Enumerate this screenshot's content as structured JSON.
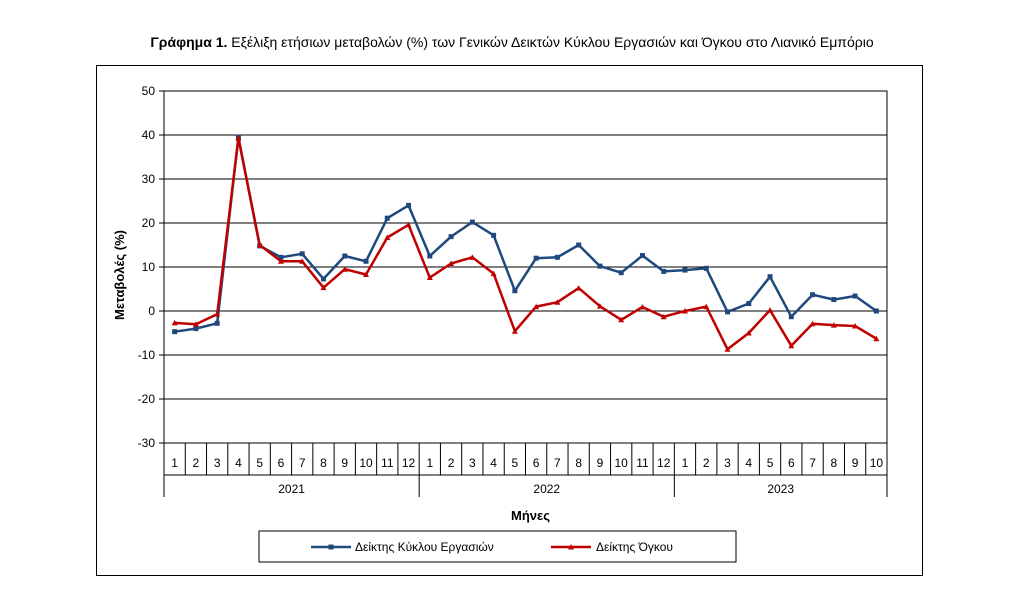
{
  "figure": {
    "title_bold": "Γράφημα 1.",
    "title_rest": " Εξέλιξη ετήσιων μεταβολών (%) των Γενικών Δεικτών Κύκλου Εργασιών και Όγκου στο Λιανικό Εμπόριο"
  },
  "chart_data": {
    "type": "line",
    "ylabel": "Μεταβολές  (%)",
    "xlabel": "Μήνες",
    "ylim": [
      -30,
      50
    ],
    "yticks": [
      50,
      40,
      30,
      20,
      10,
      0,
      -10,
      -20,
      -30
    ],
    "months": [
      "1",
      "2",
      "3",
      "4",
      "5",
      "6",
      "7",
      "8",
      "9",
      "10",
      "11",
      "12",
      "1",
      "2",
      "3",
      "4",
      "5",
      "6",
      "7",
      "8",
      "9",
      "10",
      "11",
      "12",
      "1",
      "2",
      "3",
      "4",
      "5",
      "6",
      "7",
      "8",
      "9",
      "10"
    ],
    "years": [
      {
        "label": "2021",
        "count": 12
      },
      {
        "label": "2022",
        "count": 12
      },
      {
        "label": "2023",
        "count": 10
      }
    ],
    "grid": true,
    "legend_position": "bottom",
    "series": [
      {
        "name": "Δείκτης Κύκλου Εργασιών",
        "color": "#1f497d",
        "marker": "square",
        "values": [
          -4.7,
          -4.0,
          -2.8,
          39.5,
          14.8,
          12.2,
          13.0,
          7.3,
          12.5,
          11.3,
          21.1,
          24.0,
          12.5,
          16.9,
          20.2,
          17.2,
          4.6,
          12.0,
          12.2,
          15.0,
          10.2,
          8.7,
          12.6,
          9.0,
          9.3,
          9.7,
          -0.2,
          1.7,
          7.8,
          -1.3,
          3.7,
          2.6,
          3.4,
          0.0
        ]
      },
      {
        "name": "Δείκτης Όγκου",
        "color": "#c00000",
        "marker": "triangle",
        "values": [
          -2.7,
          -3.0,
          -0.7,
          39.3,
          15.0,
          11.3,
          11.3,
          5.3,
          9.5,
          8.3,
          16.7,
          19.6,
          7.6,
          10.8,
          12.2,
          8.5,
          -4.6,
          1.0,
          2.0,
          5.2,
          1.1,
          -2.0,
          0.9,
          -1.3,
          0.0,
          1.0,
          -8.7,
          -5.0,
          0.2,
          -7.9,
          -2.9,
          -3.2,
          -3.4,
          -6.3
        ]
      }
    ]
  }
}
